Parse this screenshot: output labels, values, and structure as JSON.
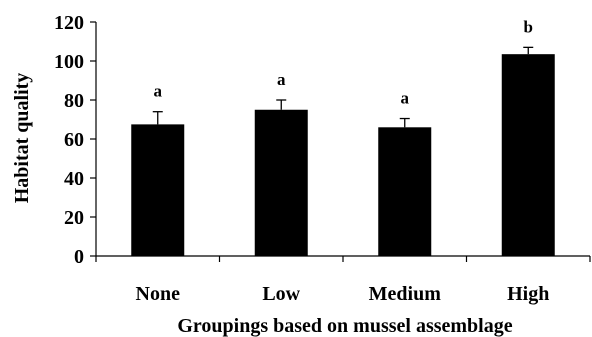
{
  "chart_data": {
    "type": "bar",
    "title": "",
    "xlabel": "Groupings based on mussel assemblage",
    "ylabel": "Habitat quality",
    "ylim": [
      0,
      120
    ],
    "yticks": [
      "0",
      "20",
      "40",
      "60",
      "80",
      "100",
      "120"
    ],
    "categories": [
      "None",
      "Low",
      "Medium",
      "High"
    ],
    "values": [
      67.5,
      75,
      66,
      103.5
    ],
    "errors": [
      6.5,
      5,
      4.5,
      3.5
    ],
    "significance_labels": [
      "a",
      "a",
      "a",
      "b"
    ],
    "grid": false,
    "legend": "none",
    "bar_color": "#000000"
  }
}
